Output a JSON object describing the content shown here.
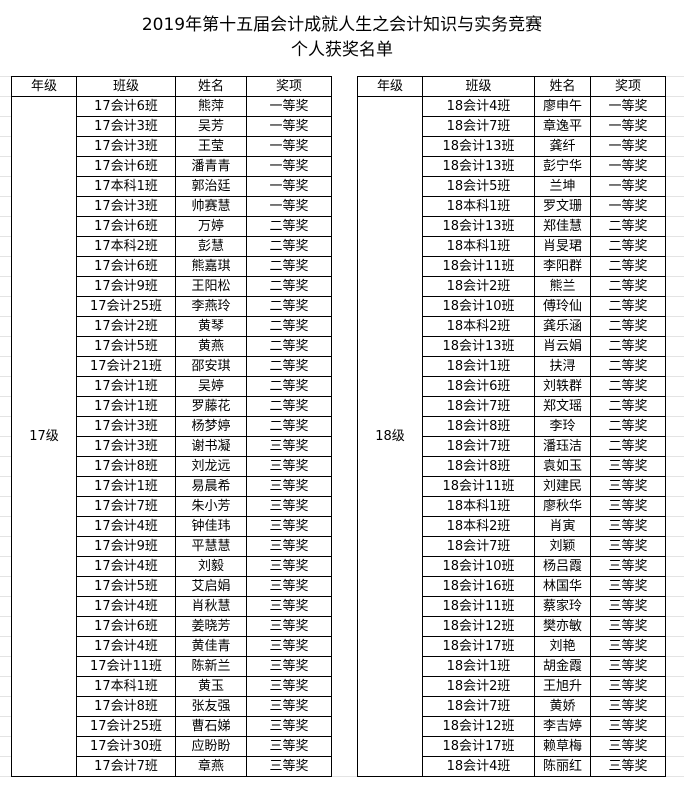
{
  "title": "2019年第十五届会计成就人生之会计知识与实务竞赛",
  "subtitle": "个人获奖名单",
  "headers": [
    "年级",
    "班级",
    "姓名",
    "奖项"
  ],
  "left": {
    "grade": "17级",
    "rows": [
      [
        "17会计6班",
        "熊萍",
        "一等奖"
      ],
      [
        "17会计3班",
        "吴芳",
        "一等奖"
      ],
      [
        "17会计3班",
        "王莹",
        "一等奖"
      ],
      [
        "17会计6班",
        "潘青青",
        "一等奖"
      ],
      [
        "17本科1班",
        "郭治廷",
        "一等奖"
      ],
      [
        "17会计3班",
        "帅赛慧",
        "一等奖"
      ],
      [
        "17会计6班",
        "万婷",
        "二等奖"
      ],
      [
        "17本科2班",
        "彭慧",
        "二等奖"
      ],
      [
        "17会计6班",
        "熊嘉琪",
        "二等奖"
      ],
      [
        "17会计9班",
        "王阳松",
        "二等奖"
      ],
      [
        "17会计25班",
        "李燕玲",
        "二等奖"
      ],
      [
        "17会计2班",
        "黄琴",
        "二等奖"
      ],
      [
        "17会计5班",
        "黄燕",
        "二等奖"
      ],
      [
        "17会计21班",
        "邵安琪",
        "二等奖"
      ],
      [
        "17会计1班",
        "吴婷",
        "二等奖"
      ],
      [
        "17会计1班",
        "罗藤花",
        "二等奖"
      ],
      [
        "17会计3班",
        "杨梦婷",
        "二等奖"
      ],
      [
        "17会计3班",
        "谢书凝",
        "三等奖"
      ],
      [
        "17会计8班",
        "刘龙远",
        "三等奖"
      ],
      [
        "17会计1班",
        "易晨希",
        "三等奖"
      ],
      [
        "17会计7班",
        "朱小芳",
        "三等奖"
      ],
      [
        "17会计4班",
        "钟佳玮",
        "三等奖"
      ],
      [
        "17会计9班",
        "平慧慧",
        "三等奖"
      ],
      [
        "17会计4班",
        "刘毅",
        "三等奖"
      ],
      [
        "17会计5班",
        "艾启娟",
        "三等奖"
      ],
      [
        "17会计4班",
        "肖秋慧",
        "三等奖"
      ],
      [
        "17会计6班",
        "姜晓芳",
        "三等奖"
      ],
      [
        "17会计4班",
        "黄佳青",
        "三等奖"
      ],
      [
        "17会计11班",
        "陈新兰",
        "三等奖"
      ],
      [
        "17本科1班",
        "黄玉",
        "三等奖"
      ],
      [
        "17会计8班",
        "张友强",
        "三等奖"
      ],
      [
        "17会计25班",
        "曹石娣",
        "三等奖"
      ],
      [
        "17会计30班",
        "应盼盼",
        "三等奖"
      ],
      [
        "17会计7班",
        "章燕",
        "三等奖"
      ]
    ]
  },
  "right": {
    "grade": "18级",
    "rows": [
      [
        "18会计4班",
        "廖申午",
        "一等奖"
      ],
      [
        "18会计7班",
        "章逸平",
        "一等奖"
      ],
      [
        "18会计13班",
        "龚纤",
        "一等奖"
      ],
      [
        "18会计13班",
        "彭宁华",
        "一等奖"
      ],
      [
        "18会计5班",
        "兰坤",
        "一等奖"
      ],
      [
        "18本科1班",
        "罗文珊",
        "一等奖"
      ],
      [
        "18会计13班",
        "郑佳慧",
        "二等奖"
      ],
      [
        "18本科1班",
        "肖旻珺",
        "二等奖"
      ],
      [
        "18会计11班",
        "李阳群",
        "二等奖"
      ],
      [
        "18会计2班",
        "熊兰",
        "二等奖"
      ],
      [
        "18会计10班",
        "傅玲仙",
        "二等奖"
      ],
      [
        "18本科2班",
        "龚乐涵",
        "二等奖"
      ],
      [
        "18会计13班",
        "肖云娟",
        "二等奖"
      ],
      [
        "18会计1班",
        "扶浔",
        "二等奖"
      ],
      [
        "18会计6班",
        "刘轶群",
        "二等奖"
      ],
      [
        "18会计7班",
        "郑文瑶",
        "二等奖"
      ],
      [
        "18会计8班",
        "李玲",
        "二等奖"
      ],
      [
        "18会计7班",
        "潘珏洁",
        "二等奖"
      ],
      [
        "18会计8班",
        "袁如玉",
        "三等奖"
      ],
      [
        "18会计11班",
        "刘建民",
        "三等奖"
      ],
      [
        "18本科1班",
        "廖秋华",
        "三等奖"
      ],
      [
        "18本科2班",
        "肖寅",
        "三等奖"
      ],
      [
        "18会计7班",
        "刘颖",
        "三等奖"
      ],
      [
        "18会计10班",
        "杨吕霞",
        "三等奖"
      ],
      [
        "18会计16班",
        "林国华",
        "三等奖"
      ],
      [
        "18会计11班",
        "蔡家玲",
        "三等奖"
      ],
      [
        "18会计12班",
        "樊亦敏",
        "三等奖"
      ],
      [
        "18会计17班",
        "刘艳",
        "三等奖"
      ],
      [
        "18会计1班",
        "胡金霞",
        "三等奖"
      ],
      [
        "18会计2班",
        "王旭升",
        "三等奖"
      ],
      [
        "18会计7班",
        "黄娇",
        "三等奖"
      ],
      [
        "18会计12班",
        "李吉婷",
        "三等奖"
      ],
      [
        "18会计17班",
        "赖草梅",
        "三等奖"
      ],
      [
        "18会计4班",
        "陈丽红",
        "三等奖"
      ]
    ]
  }
}
